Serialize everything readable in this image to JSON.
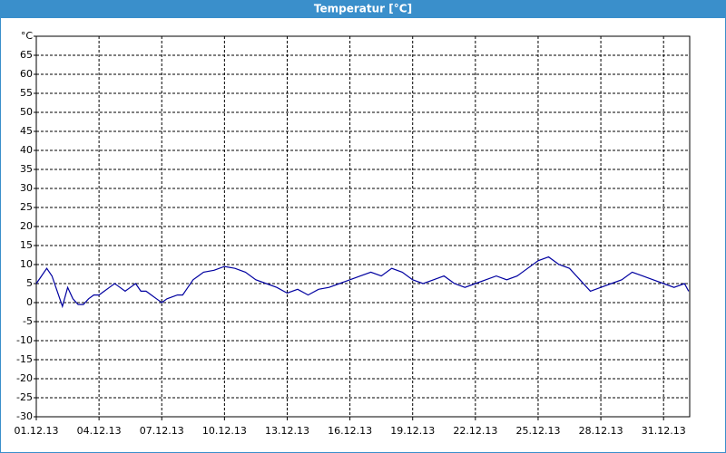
{
  "chart_data": {
    "type": "line",
    "title": "Temperatur [°C]",
    "x": [
      0,
      0.25,
      0.5,
      0.75,
      1,
      1.25,
      1.5,
      1.75,
      2,
      2.25,
      2.5,
      2.75,
      3,
      3.25,
      3.5,
      3.75,
      4,
      4.25,
      4.5,
      4.75,
      5,
      5.25,
      5.5,
      5.75,
      6,
      6.25,
      6.5,
      6.75,
      7,
      7.25,
      7.5,
      7.75,
      8,
      8.5,
      9,
      9.5,
      10,
      10.5,
      11,
      11.5,
      12,
      12.5,
      13,
      13.5,
      14,
      14.5,
      15,
      15.5,
      16,
      16.5,
      17,
      17.5,
      18,
      18.5,
      19,
      19.5,
      20,
      20.5,
      21,
      21.5,
      22,
      22.5,
      23,
      23.5,
      24,
      24.5,
      25,
      25.5,
      26,
      26.5,
      27,
      27.5,
      28,
      28.5,
      29,
      29.5,
      30,
      30.5,
      31,
      31.2
    ],
    "series": [
      {
        "name": "Temperatur",
        "color": "#0000a0",
        "values": [
          5,
          7,
          9,
          7,
          3,
          -1,
          4,
          1,
          -0.5,
          -0.5,
          1,
          2,
          2,
          3,
          4,
          5,
          4,
          3,
          4,
          5,
          3,
          3,
          2,
          1,
          0,
          1,
          1.5,
          2,
          2,
          4,
          6,
          7,
          8,
          8.5,
          9.5,
          9,
          8,
          6,
          5,
          4,
          2.5,
          3.5,
          2,
          3.5,
          4,
          5,
          6,
          7,
          8,
          7,
          9,
          8,
          6,
          5,
          6,
          7,
          5,
          4,
          5,
          6,
          7,
          6,
          7,
          9,
          11,
          12,
          10,
          9,
          6,
          3,
          4,
          5,
          6,
          8,
          7,
          6,
          5,
          4,
          5,
          3
        ]
      }
    ],
    "xlim": [
      0,
      31.25
    ],
    "xticks": [
      {
        "value": 0,
        "label": "01.12.13"
      },
      {
        "value": 3,
        "label": "04.12.13"
      },
      {
        "value": 6,
        "label": "07.12.13"
      },
      {
        "value": 9,
        "label": "10.12.13"
      },
      {
        "value": 12,
        "label": "13.12.13"
      },
      {
        "value": 15,
        "label": "16.12.13"
      },
      {
        "value": 18,
        "label": "19.12.13"
      },
      {
        "value": 21,
        "label": "22.12.13"
      },
      {
        "value": 24,
        "label": "25.12.13"
      },
      {
        "value": 27,
        "label": "28.12.13"
      },
      {
        "value": 30,
        "label": "31.12.13"
      }
    ],
    "ylim": [
      -30,
      70
    ],
    "yticks": [
      -30,
      -25,
      -20,
      -15,
      -10,
      -5,
      0,
      5,
      10,
      15,
      20,
      25,
      30,
      35,
      40,
      45,
      50,
      55,
      60,
      65,
      {
        "value": 70,
        "label": "°C"
      }
    ],
    "grid": true
  }
}
